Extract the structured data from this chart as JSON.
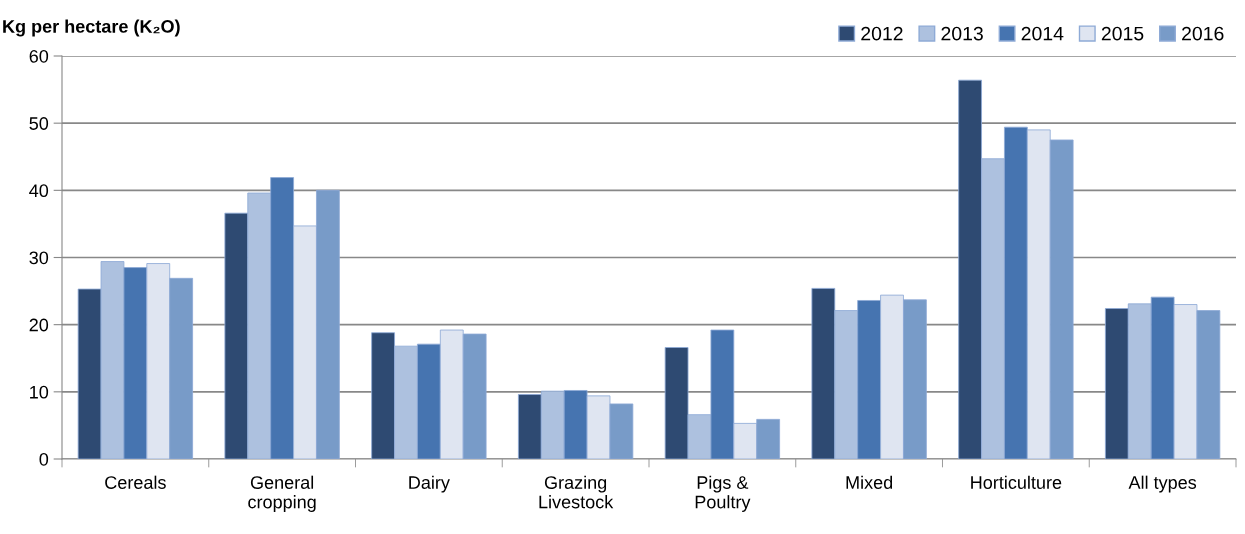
{
  "chart_data": {
    "type": "bar",
    "ylabel": "Kg per hectare (K₂O)",
    "categories": [
      "Cereals",
      "General\ncropping",
      "Dairy",
      "Grazing\nLivestock",
      "Pigs &\nPoultry",
      "Mixed",
      "Horticulture",
      "All types"
    ],
    "series": [
      {
        "name": "2012",
        "color": "#2e4a72",
        "values": [
          25.3,
          36.6,
          18.8,
          9.6,
          16.6,
          25.4,
          56.4,
          22.4
        ]
      },
      {
        "name": "2013",
        "color": "#adc1df",
        "values": [
          29.4,
          39.6,
          16.8,
          10.1,
          6.6,
          22.1,
          44.7,
          23.1
        ]
      },
      {
        "name": "2014",
        "color": "#4674b0",
        "values": [
          28.5,
          41.9,
          17.1,
          10.2,
          19.2,
          23.6,
          49.4,
          24.1
        ]
      },
      {
        "name": "2015",
        "color": "#dfe5f1",
        "values": [
          29.1,
          34.7,
          19.2,
          9.4,
          5.3,
          24.4,
          49.0,
          23.0
        ]
      },
      {
        "name": "2016",
        "color": "#789bc8",
        "values": [
          26.9,
          40.0,
          18.6,
          8.2,
          5.9,
          23.7,
          47.5,
          22.1
        ]
      }
    ],
    "ylim": [
      0,
      60
    ],
    "yticks": [
      0,
      10,
      20,
      30,
      40,
      50,
      60
    ],
    "grid": "y",
    "legend": "top right"
  }
}
